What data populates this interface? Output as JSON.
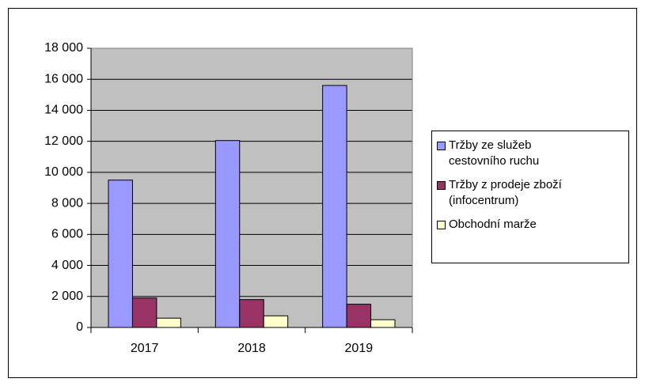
{
  "chart_data": {
    "type": "bar",
    "categories": [
      "2017",
      "2018",
      "2019"
    ],
    "series": [
      {
        "name": "Tržby ze služeb cestovního ruchu",
        "color": "#9999ff",
        "values": [
          9500,
          12050,
          15600
        ]
      },
      {
        "name": "Tržby z prodeje zboží (infocentrum)",
        "color": "#993366",
        "values": [
          1900,
          1800,
          1500
        ]
      },
      {
        "name": "Obchodní marže",
        "color": "#ffffcc",
        "values": [
          600,
          750,
          500
        ]
      }
    ],
    "ylim": [
      0,
      18000
    ],
    "yticks": [
      0,
      {
        "value": 2000,
        "label": "2 000"
      },
      {
        "value": 4000,
        "label": "4 000"
      },
      {
        "value": 6000,
        "label": "6 000"
      },
      {
        "value": 8000,
        "label": "8 000"
      },
      {
        "value": 10000,
        "label": "10 000"
      },
      {
        "value": 12000,
        "label": "12 000"
      },
      {
        "value": 14000,
        "label": "14 000"
      },
      {
        "value": 16000,
        "label": "16 000"
      },
      {
        "value": 18000,
        "label": "18 000"
      }
    ],
    "grid": true,
    "plot_background": "#c0c0c0",
    "legend": "right"
  }
}
